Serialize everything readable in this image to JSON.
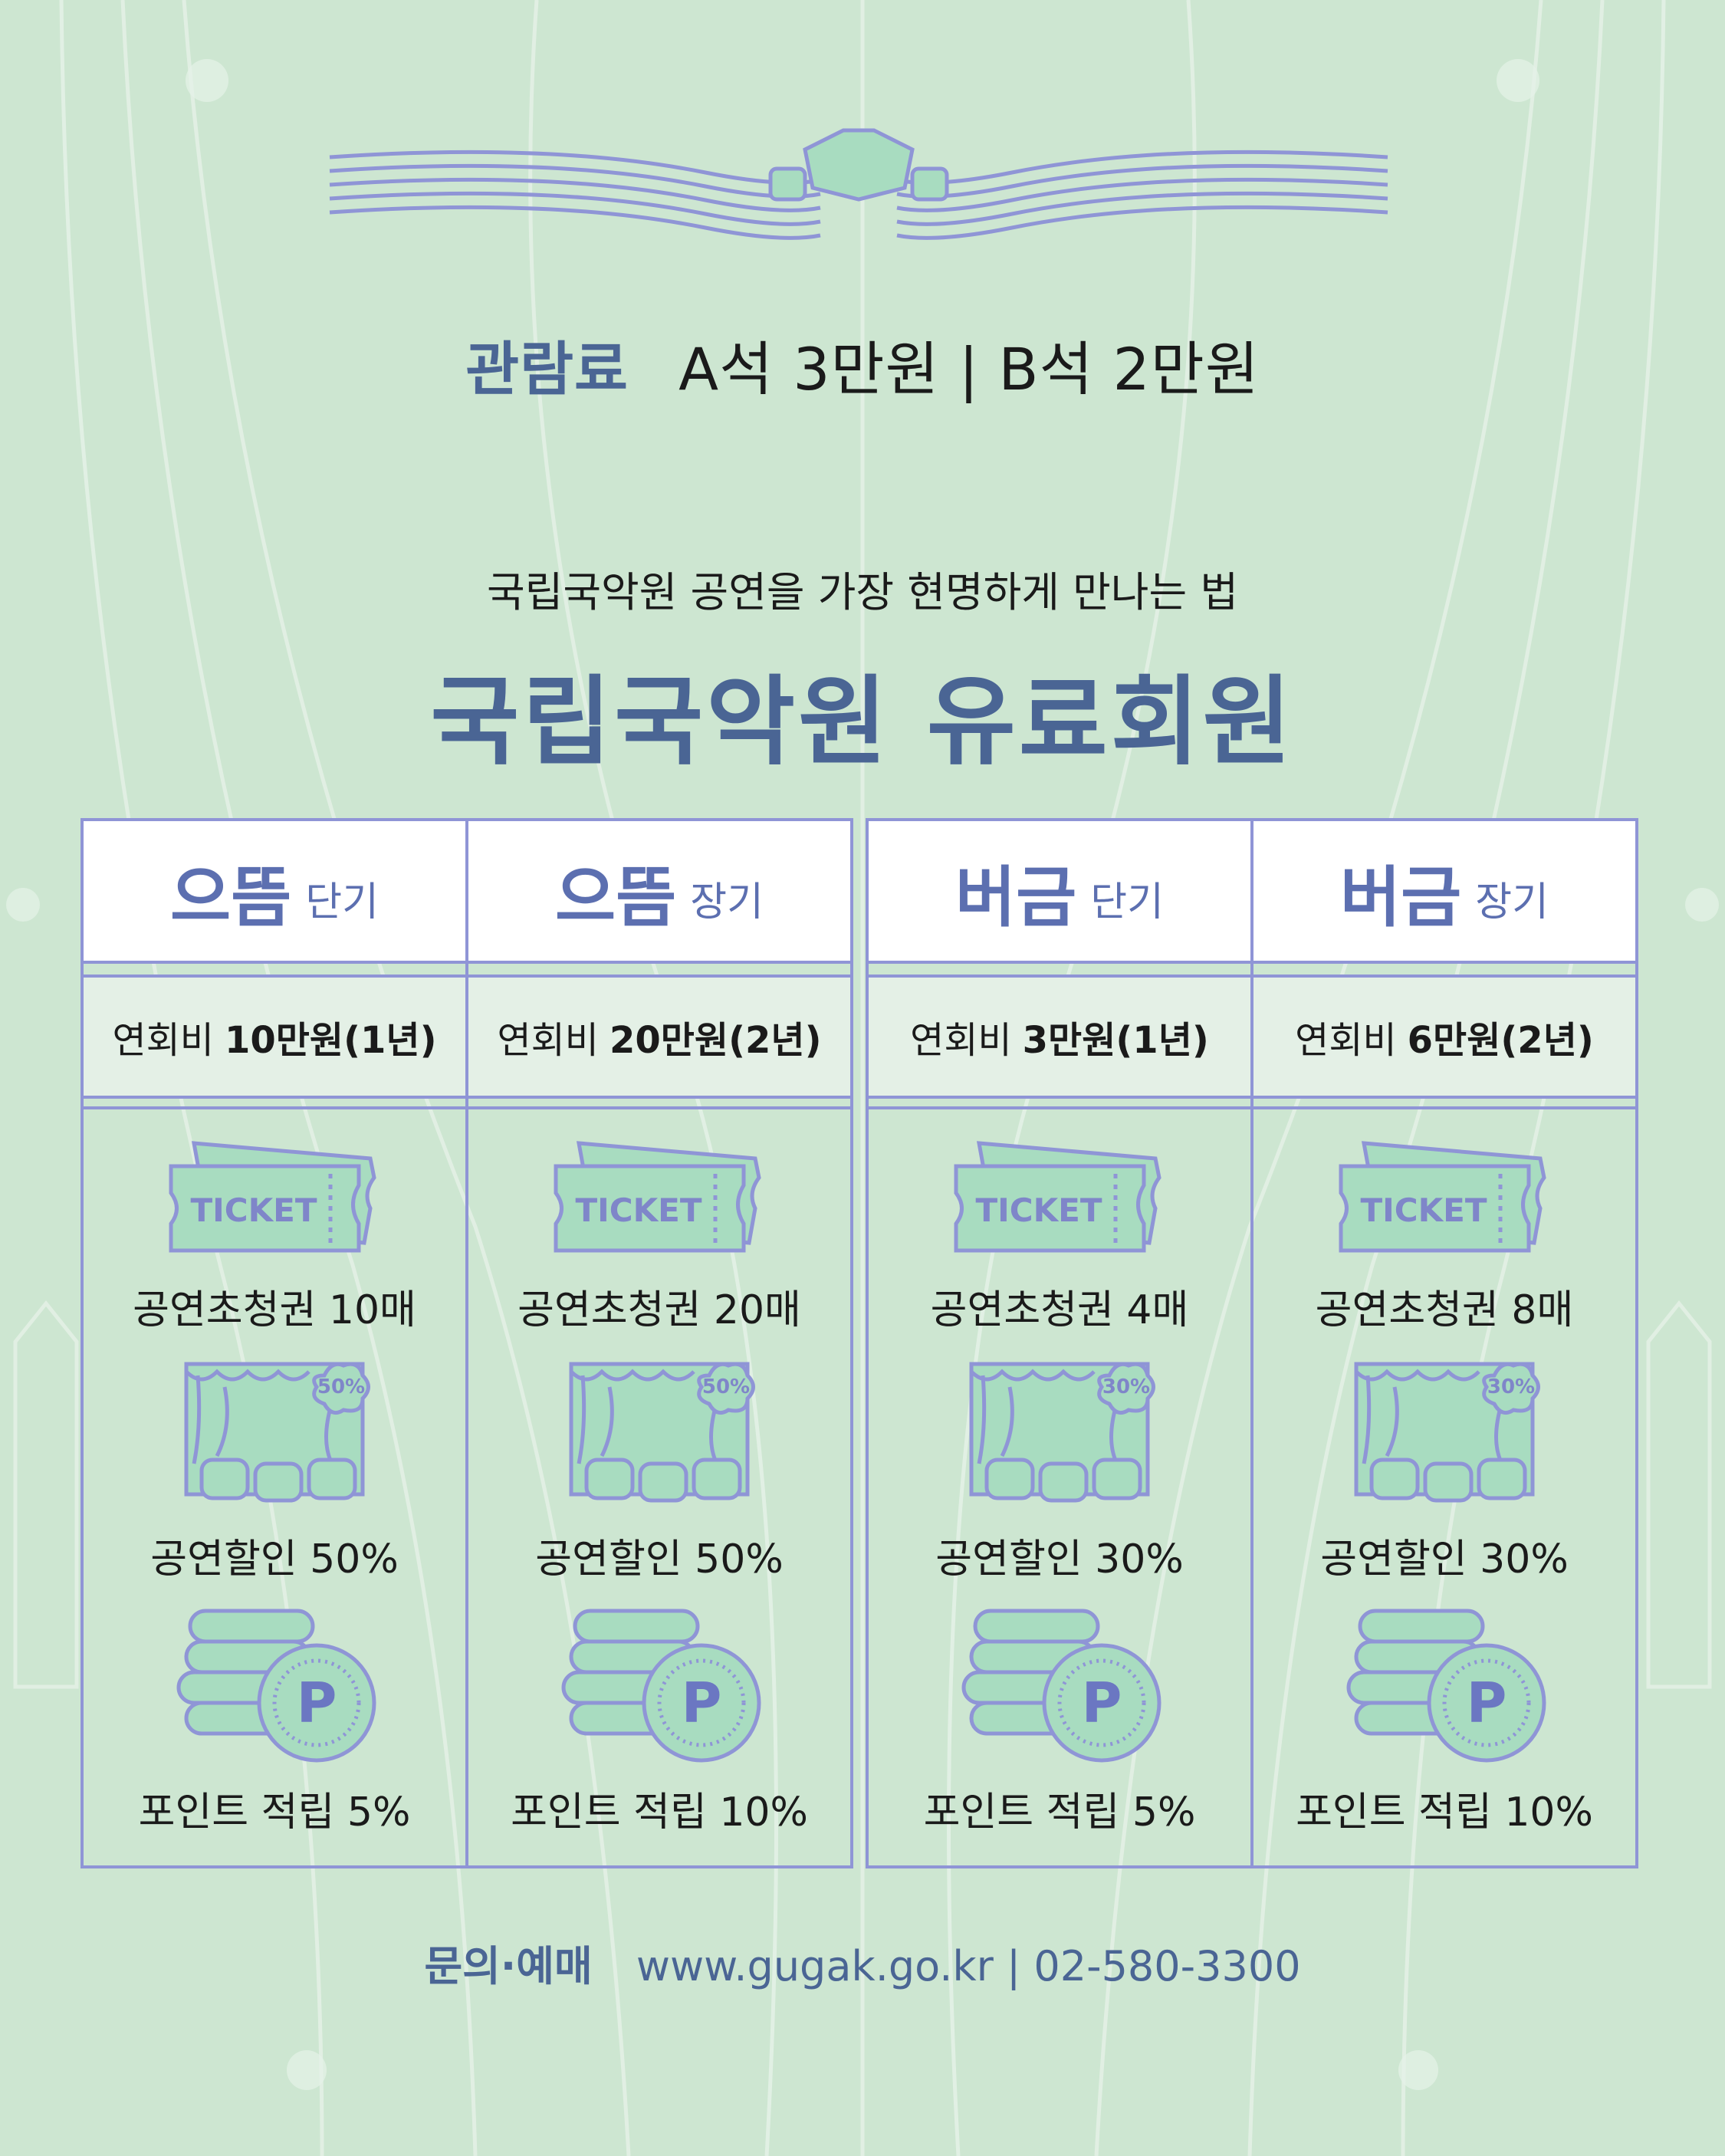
{
  "header": {
    "price_label": "관람료",
    "price_text": "A석 3만원 | B석 2만원",
    "subtitle": "국립국악원 공연을 가장 현명하게 만나는 법",
    "title": "국립국악원 유료회원"
  },
  "plans": [
    {
      "name": "으뜸",
      "term": "단기",
      "fee_label": "연회비",
      "fee_amount": "10만원(1년)",
      "ticket_word": "TICKET",
      "tickets": "공연초청권 10매",
      "discount_badge": "50%",
      "discount": "공연할인 50%",
      "point_symbol": "P",
      "points": "포인트 적립 5%"
    },
    {
      "name": "으뜸",
      "term": "장기",
      "fee_label": "연회비",
      "fee_amount": "20만원(2년)",
      "ticket_word": "TICKET",
      "tickets": "공연초청권 20매",
      "discount_badge": "50%",
      "discount": "공연할인 50%",
      "point_symbol": "P",
      "points": "포인트 적립 10%"
    },
    {
      "name": "버금",
      "term": "단기",
      "fee_label": "연회비",
      "fee_amount": "3만원(1년)",
      "ticket_word": "TICKET",
      "tickets": "공연초청권 4매",
      "discount_badge": "30%",
      "discount": "공연할인 30%",
      "point_symbol": "P",
      "points": "포인트 적립 5%"
    },
    {
      "name": "버금",
      "term": "장기",
      "fee_label": "연회비",
      "fee_amount": "6만원(2년)",
      "ticket_word": "TICKET",
      "tickets": "공연초청권 8매",
      "discount_badge": "30%",
      "discount": "공연할인 30%",
      "point_symbol": "P",
      "points": "포인트 적립 10%"
    }
  ],
  "contact": {
    "label": "문의·예매",
    "text": "www.gugak.go.kr | 02-580-3300"
  },
  "icons": {
    "ornament": "tassel-ornament-icon",
    "ticket": "ticket-icon",
    "stage": "stage-seats-icon",
    "coin": "point-coins-icon"
  },
  "colors": {
    "background": "#cde6d1",
    "accent": "#4a6594",
    "line": "#8f95d6",
    "icon_fill": "#a8dcc0"
  }
}
